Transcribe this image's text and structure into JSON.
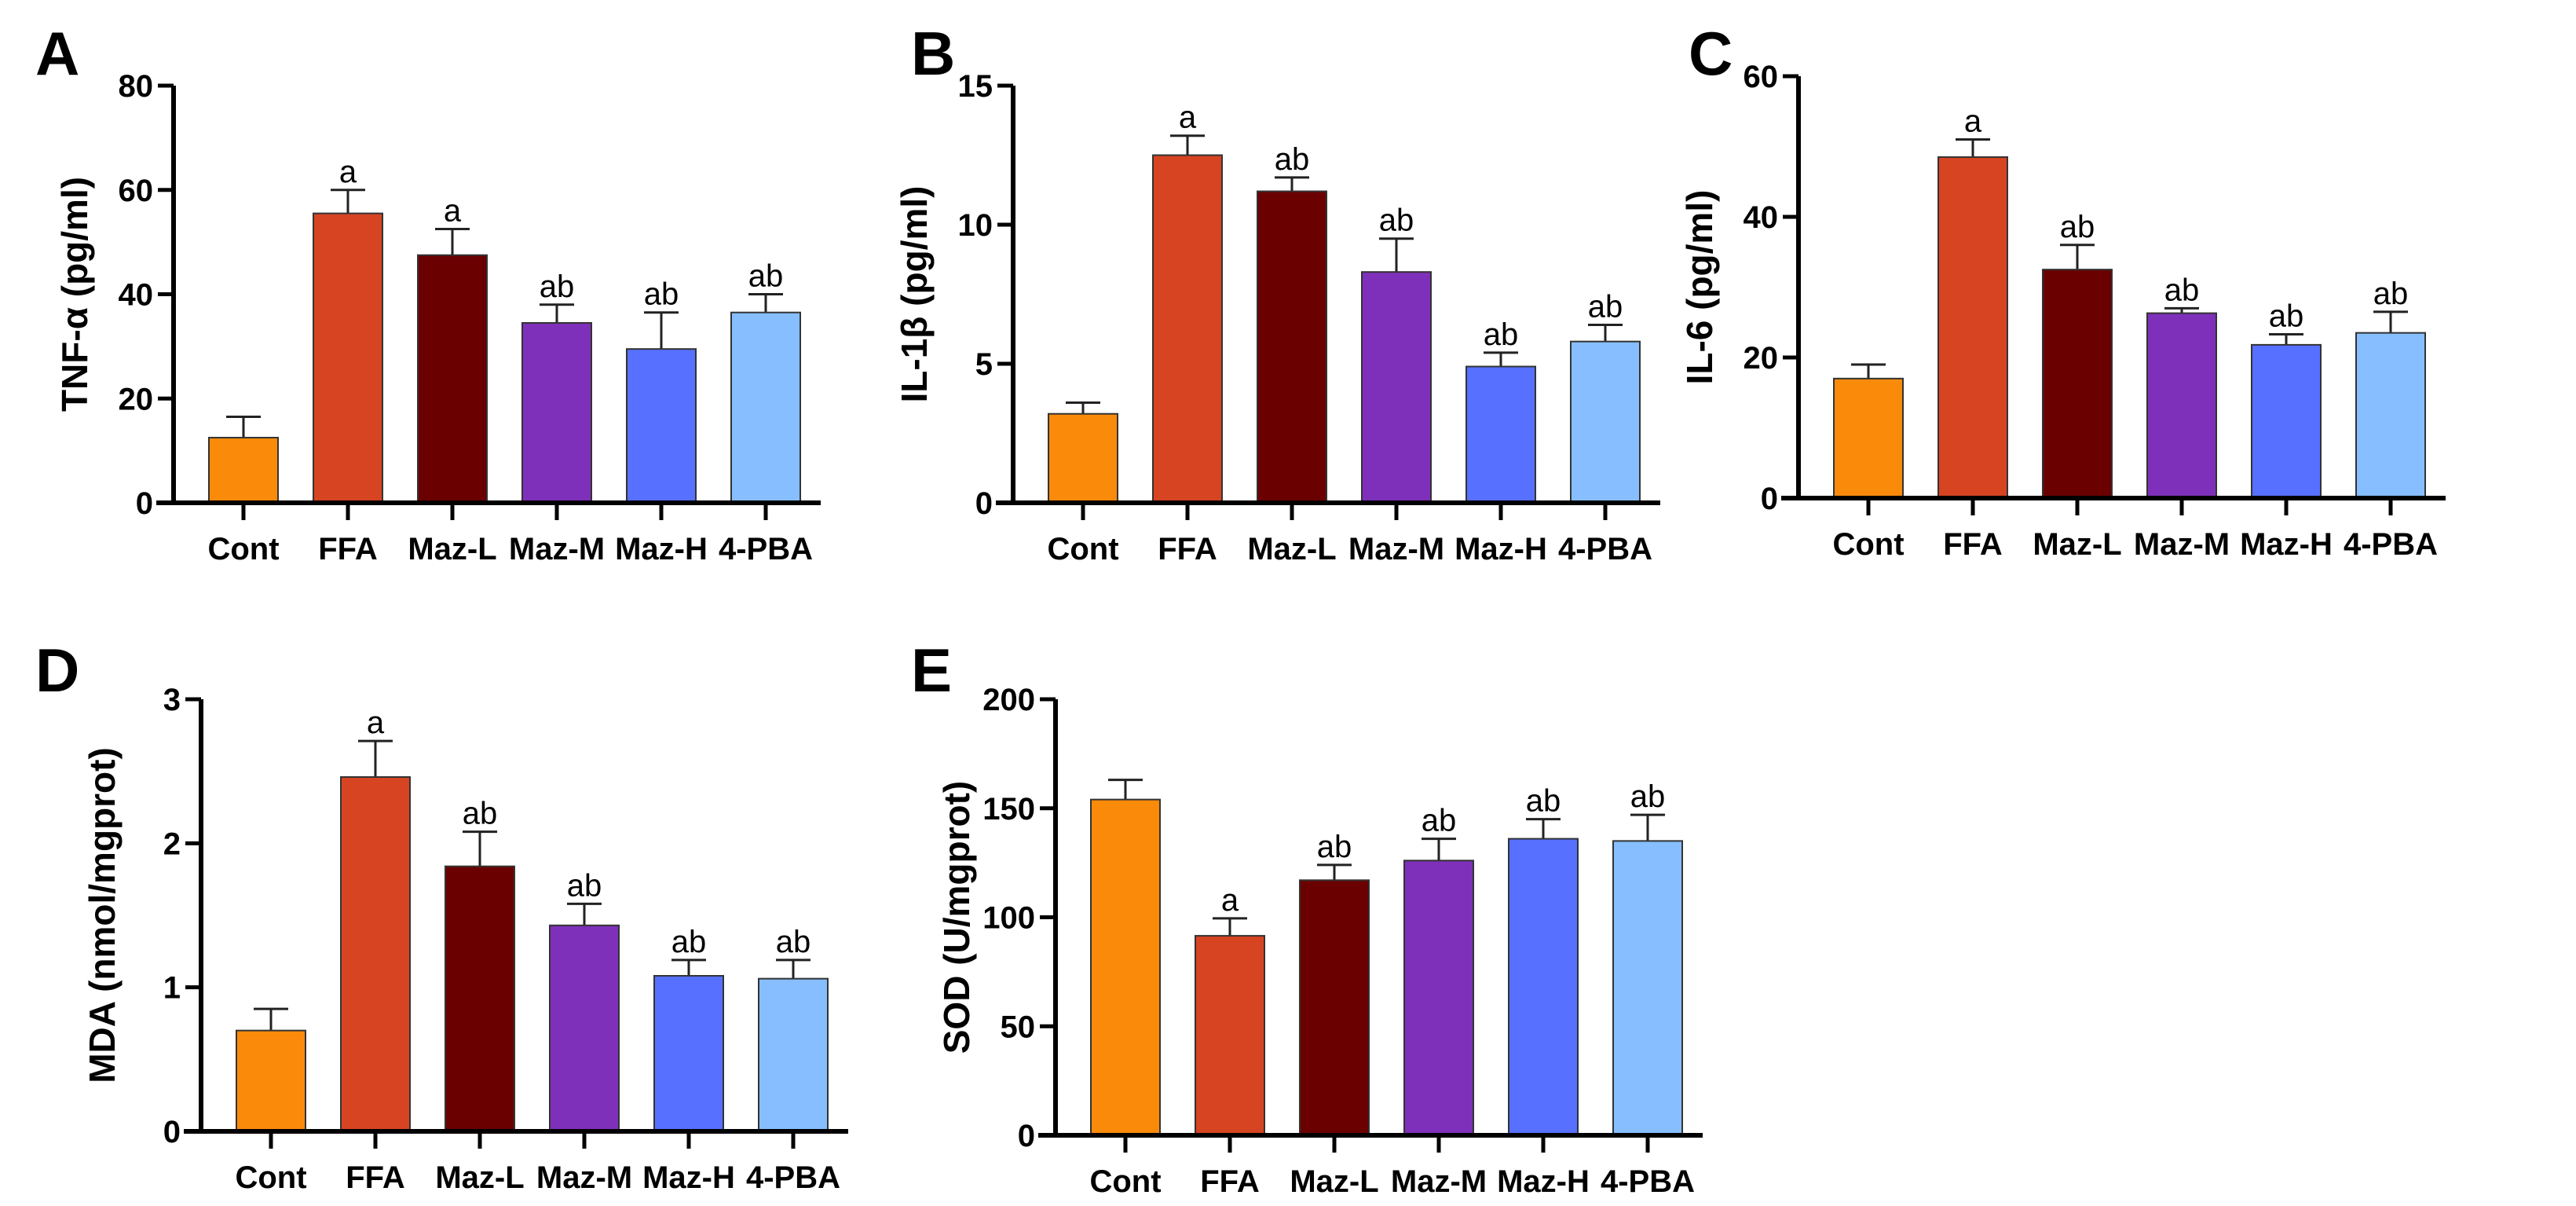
{
  "chart_data": [
    {
      "type": "bar",
      "panel": "A",
      "ylabel": "TNF-α (pg/ml)",
      "ylim": [
        0,
        80
      ],
      "yticks": [
        0,
        20,
        40,
        60,
        80
      ],
      "categories": [
        "Cont",
        "FFA",
        "Maz-L",
        "Maz-M",
        "Maz-H",
        "4-PBA"
      ],
      "values": [
        12.5,
        55.5,
        47.5,
        34.5,
        29.5,
        36.5
      ],
      "errors": [
        4,
        4.5,
        5,
        3.5,
        7,
        3.5
      ],
      "labels": [
        "",
        "a",
        "a",
        "ab",
        "ab",
        "ab"
      ]
    },
    {
      "type": "bar",
      "panel": "B",
      "ylabel": "IL-1β (pg/ml)",
      "ylim": [
        0,
        15
      ],
      "yticks": [
        0,
        5,
        10,
        15
      ],
      "categories": [
        "Cont",
        "FFA",
        "Maz-L",
        "Maz-M",
        "Maz-H",
        "4-PBA"
      ],
      "values": [
        3.2,
        12.5,
        11.2,
        8.3,
        4.9,
        5.8
      ],
      "errors": [
        0.4,
        0.7,
        0.5,
        1.2,
        0.5,
        0.6
      ],
      "labels": [
        "",
        "a",
        "ab",
        "ab",
        "ab",
        "ab"
      ]
    },
    {
      "type": "bar",
      "panel": "C",
      "ylabel": "IL-6 (pg/ml)",
      "ylim": [
        0,
        60
      ],
      "yticks": [
        0,
        20,
        40,
        60
      ],
      "categories": [
        "Cont",
        "FFA",
        "Maz-L",
        "Maz-M",
        "Maz-H",
        "4-PBA"
      ],
      "values": [
        17,
        48.5,
        32.5,
        26.3,
        21.8,
        23.5
      ],
      "errors": [
        2,
        2.5,
        3.5,
        0.7,
        1.5,
        3
      ],
      "labels": [
        "",
        "a",
        "ab",
        "ab",
        "ab",
        "ab"
      ]
    },
    {
      "type": "bar",
      "panel": "D",
      "ylabel": "MDA (nmol/mgprot)",
      "ylim": [
        0,
        3
      ],
      "yticks": [
        0,
        1,
        2,
        3
      ],
      "categories": [
        "Cont",
        "FFA",
        "Maz-L",
        "Maz-M",
        "Maz-H",
        "4-PBA"
      ],
      "values": [
        0.7,
        2.46,
        1.84,
        1.43,
        1.08,
        1.06
      ],
      "errors": [
        0.15,
        0.25,
        0.24,
        0.15,
        0.11,
        0.13
      ],
      "labels": [
        "",
        "a",
        "ab",
        "ab",
        "ab",
        "ab"
      ]
    },
    {
      "type": "bar",
      "panel": "E",
      "ylabel": "SOD (U/mgprot)",
      "ylim": [
        0,
        200
      ],
      "yticks": [
        0,
        50,
        100,
        150,
        200
      ],
      "categories": [
        "Cont",
        "FFA",
        "Maz-L",
        "Maz-M",
        "Maz-H",
        "4-PBA"
      ],
      "values": [
        154,
        91.5,
        117,
        126,
        136,
        135
      ],
      "errors": [
        9,
        8,
        7,
        10,
        9,
        12
      ],
      "labels": [
        "",
        "a",
        "ab",
        "ab",
        "ab",
        "ab"
      ]
    }
  ],
  "colors": [
    "#FA8A0A",
    "#D64422",
    "#6B0000",
    "#7F30BA",
    "#5770FF",
    "#86BEFF"
  ]
}
